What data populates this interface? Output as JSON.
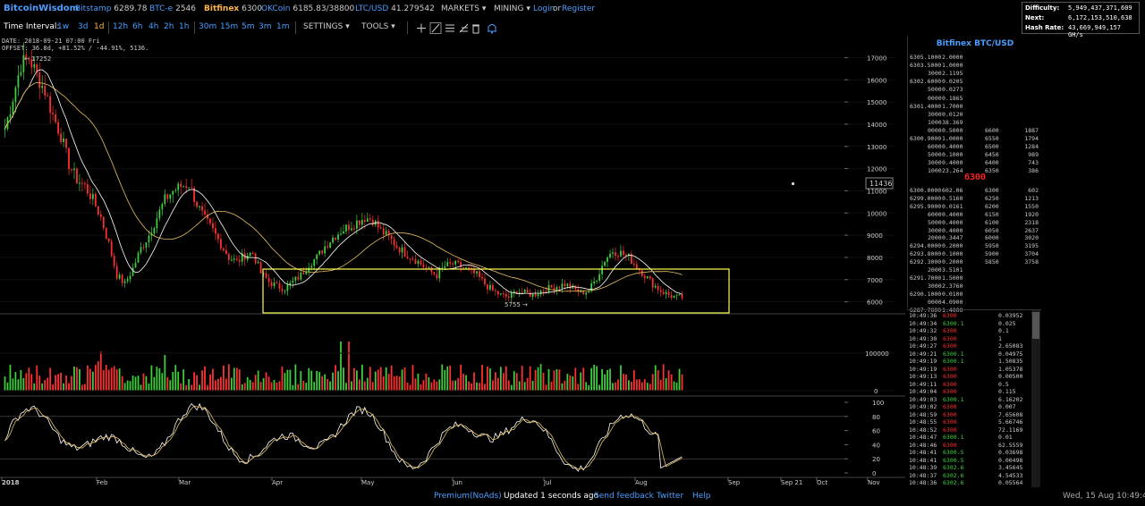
{
  "brand": "BitcoinWisdom",
  "markets": [
    {
      "name": "Bitstamp",
      "price": "6289.78"
    },
    {
      "name": "BTC-e",
      "price": "2546"
    },
    {
      "name": "Bitfinex",
      "price": "6300"
    },
    {
      "name": "OKCoin",
      "price": "6185.83/38800"
    },
    {
      "name": "LTC/USD",
      "price": "41.279542"
    }
  ],
  "menu": {
    "markets": "MARKETS",
    "mining": "MINING",
    "login": "Login",
    "or": "or",
    "register": "Register"
  },
  "difficulty": {
    "difficulty_label": "Difficulty:",
    "difficulty_value": "5,949,437,371,609",
    "next_label": "Next:",
    "next_value": "6,172,153,510,638",
    "hashrate_label": "Hash Rate:",
    "hashrate_value": "43,669,949,157 GH/s"
  },
  "toolbar": {
    "interval_label": "Time Interval:",
    "intervals": [
      "1w",
      "3d",
      "1d",
      "12h",
      "6h",
      "4h",
      "2h",
      "1h",
      "30m",
      "15m",
      "5m",
      "3m",
      "1m"
    ],
    "active_interval": "1d",
    "settings": "SETTINGS",
    "tools": "TOOLS"
  },
  "chart_info": {
    "date_line": "DATE: 2018-09-21 07:00 Fri",
    "offset_line": "OFFSET: 36.8d, +81.52% / -44.91%, 5136.",
    "high_label": "← 17252",
    "low_label": "5755 →",
    "crosshair_price": "11436"
  },
  "chart_data": {
    "type": "candlestick",
    "price_axis": [
      "17000",
      "16000",
      "15000",
      "14000",
      "13000",
      "12000",
      "11000",
      "10000",
      "9000",
      "8000",
      "7000",
      "6000"
    ],
    "volume_axis": [
      "100000",
      "0"
    ],
    "osc_axis": [
      "100",
      "80",
      "60",
      "40",
      "20",
      "0"
    ],
    "x_axis": [
      "2018",
      "Feb",
      "Mar",
      "Apr",
      "May",
      "Jun",
      "Jul",
      "Aug",
      "Sep",
      "Sep 21",
      "Oct",
      "Nov"
    ],
    "price_range": [
      5500,
      17500
    ],
    "close_series": [
      13800,
      15200,
      16700,
      17000,
      16200,
      15500,
      14400,
      13500,
      12200,
      11500,
      11200,
      10600,
      9800,
      8600,
      7200,
      6800,
      7500,
      8400,
      9000,
      9800,
      10600,
      11000,
      11200,
      11300,
      10400,
      9700,
      9200,
      8600,
      8000,
      7800,
      8100,
      8200,
      7300,
      6900,
      6700,
      6600,
      6900,
      7200,
      7700,
      8000,
      8500,
      8900,
      9200,
      9400,
      9600,
      9800,
      9700,
      9200,
      8900,
      8500,
      8200,
      8000,
      7700,
      7400,
      7200,
      7600,
      7700,
      7600,
      7400,
      7200,
      6800,
      6500,
      6300,
      6200,
      6500,
      6400,
      6300,
      6500,
      6600,
      6700,
      6800,
      6600,
      6400,
      6500,
      7100,
      7900,
      8300,
      8200,
      8000,
      7600,
      7200,
      6800,
      6500,
      6300,
      6200
    ]
  },
  "orderbook": {
    "title": "Bitfinex BTC/USD",
    "mid_price": "6300",
    "asks": [
      {
        "price": "6305.1000",
        "amount": "2.0000"
      },
      {
        "price": "6303.5000",
        "amount": "1.0000"
      },
      {
        "price": "3000",
        "amount": "2.1195"
      },
      {
        "price": "6302.6000",
        "amount": "0.0205"
      },
      {
        "price": "5000",
        "amount": "0.0273"
      },
      {
        "price": "0000",
        "amount": "0.1865"
      },
      {
        "price": "6301.4000",
        "amount": "1.7000"
      },
      {
        "price": "3000",
        "amount": "0.0120"
      },
      {
        "price": "1000",
        "amount": "38.369"
      },
      {
        "price": "0000",
        "amount": "0.5000",
        "depth_p": "6600",
        "depth_v": "1887"
      },
      {
        "price": "6300.9000",
        "amount": "1.0000",
        "depth_p": "6550",
        "depth_v": "1794"
      },
      {
        "price": "6000",
        "amount": "0.4000",
        "depth_p": "6500",
        "depth_v": "1284"
      },
      {
        "price": "5000",
        "amount": "0.1000",
        "depth_p": "6450",
        "depth_v": "989"
      },
      {
        "price": "3000",
        "amount": "0.4000",
        "depth_p": "6400",
        "depth_v": "743"
      },
      {
        "price": "1000",
        "amount": "23.264",
        "depth_p": "6350",
        "depth_v": "386"
      }
    ],
    "bids": [
      {
        "price": "6300.0000",
        "amount": "602.06",
        "depth_p": "6300",
        "depth_v": "602"
      },
      {
        "price": "6299.0000",
        "amount": "0.5160",
        "depth_p": "6250",
        "depth_v": "1213"
      },
      {
        "price": "6295.9000",
        "amount": "0.0161",
        "depth_p": "6200",
        "depth_v": "1550"
      },
      {
        "price": "6000",
        "amount": "0.4000",
        "depth_p": "6150",
        "depth_v": "1920"
      },
      {
        "price": "5000",
        "amount": "0.4000",
        "depth_p": "6100",
        "depth_v": "2318"
      },
      {
        "price": "3000",
        "amount": "0.4000",
        "depth_p": "6050",
        "depth_v": "2637"
      },
      {
        "price": "2000",
        "amount": "0.3447",
        "depth_p": "6000",
        "depth_v": "3020"
      },
      {
        "price": "6294.0000",
        "amount": "0.2000",
        "depth_p": "5950",
        "depth_v": "3195"
      },
      {
        "price": "6293.8000",
        "amount": "0.1000",
        "depth_p": "5900",
        "depth_v": "3704"
      },
      {
        "price": "6292.3000",
        "amount": "0.2000",
        "depth_p": "5850",
        "depth_v": "3758"
      },
      {
        "price": "2000",
        "amount": "3.5101"
      },
      {
        "price": "6291.7000",
        "amount": "1.5000"
      },
      {
        "price": "3000",
        "amount": "2.3760"
      },
      {
        "price": "6290.1000",
        "amount": "0.0100"
      },
      {
        "price": "0000",
        "amount": "4.0900"
      },
      {
        "price": "6287.7000",
        "amount": "1.4000"
      }
    ]
  },
  "trades": [
    {
      "time": "10:49:36",
      "price": "6300",
      "amount": "0.03952",
      "side": "sell"
    },
    {
      "time": "10:49:34",
      "price": "6300.1",
      "amount": "0.025",
      "side": "buy"
    },
    {
      "time": "10:49:32",
      "price": "6300",
      "amount": "0.1",
      "side": "sell"
    },
    {
      "time": "10:49:30",
      "price": "6300",
      "amount": "1",
      "side": "sell"
    },
    {
      "time": "10:49:27",
      "price": "6300",
      "amount": "2.65083",
      "side": "sell"
    },
    {
      "time": "10:49:21",
      "price": "6300.1",
      "amount": "0.04975",
      "side": "buy"
    },
    {
      "time": "10:49:19",
      "price": "6300.1",
      "amount": "1.50835",
      "side": "buy"
    },
    {
      "time": "10:49:19",
      "price": "6300",
      "amount": "1.05378",
      "side": "sell"
    },
    {
      "time": "10:49:13",
      "price": "6300",
      "amount": "0.00500",
      "side": "sell"
    },
    {
      "time": "10:49:11",
      "price": "6300",
      "amount": "0.5",
      "side": "sell"
    },
    {
      "time": "10:49:04",
      "price": "6300",
      "amount": "0.115",
      "side": "sell"
    },
    {
      "time": "10:49:03",
      "price": "6300.1",
      "amount": "6.16202",
      "side": "buy"
    },
    {
      "time": "10:49:02",
      "price": "6300",
      "amount": "0.007",
      "side": "sell"
    },
    {
      "time": "10:48:59",
      "price": "6300",
      "amount": "7.65608",
      "side": "sell"
    },
    {
      "time": "10:48:55",
      "price": "6300",
      "amount": "5.66746",
      "side": "sell"
    },
    {
      "time": "10:48:52",
      "price": "6300",
      "amount": "72.1169",
      "side": "sell"
    },
    {
      "time": "10:48:47",
      "price": "6300.1",
      "amount": "0.01",
      "side": "buy"
    },
    {
      "time": "10:48:46",
      "price": "6300",
      "amount": "62.5559",
      "side": "sell"
    },
    {
      "time": "10:48:41",
      "price": "6300.5",
      "amount": "0.03698",
      "side": "buy"
    },
    {
      "time": "10:48:41",
      "price": "6300.5",
      "amount": "0.00498",
      "side": "buy"
    },
    {
      "time": "10:48:39",
      "price": "6302.6",
      "amount": "3.45645",
      "side": "buy"
    },
    {
      "time": "10:48:37",
      "price": "6302.6",
      "amount": "4.54533",
      "side": "buy"
    },
    {
      "time": "10:48:36",
      "price": "6302.6",
      "amount": "0.05564",
      "side": "buy"
    }
  ],
  "footer": {
    "premium": "Premium(NoAds)",
    "updated": "Updated 1 seconds ago",
    "feedback": "Send feedback",
    "twitter": "Twitter",
    "help": "Help",
    "datetime": "Wed, 15 Aug 10:49:42"
  },
  "colors": {
    "up": "#3ecf3e",
    "down": "#ff3030",
    "ma1": "#ffffff",
    "ma2": "#e8c060",
    "highlight": "#ffff55"
  }
}
